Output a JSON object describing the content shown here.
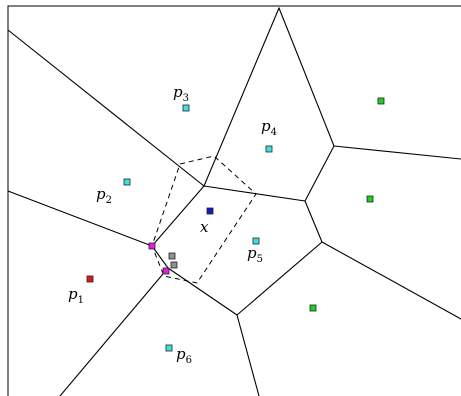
{
  "figure": {
    "labels": {
      "p1": {
        "letter": "p",
        "sub": "1"
      },
      "p2": {
        "letter": "p",
        "sub": "2"
      },
      "p3": {
        "letter": "p",
        "sub": "3"
      },
      "p4": {
        "letter": "p",
        "sub": "4"
      },
      "p5": {
        "letter": "p",
        "sub": "5"
      },
      "p6": {
        "letter": "p",
        "sub": "6"
      },
      "x": {
        "letter": "x"
      }
    },
    "colors": {
      "red": "#e01818",
      "magenta": "#e020e0",
      "cyan": "#40e0e0",
      "green": "#20d020",
      "blue": "#1020c0",
      "gray": "#909090"
    }
  }
}
